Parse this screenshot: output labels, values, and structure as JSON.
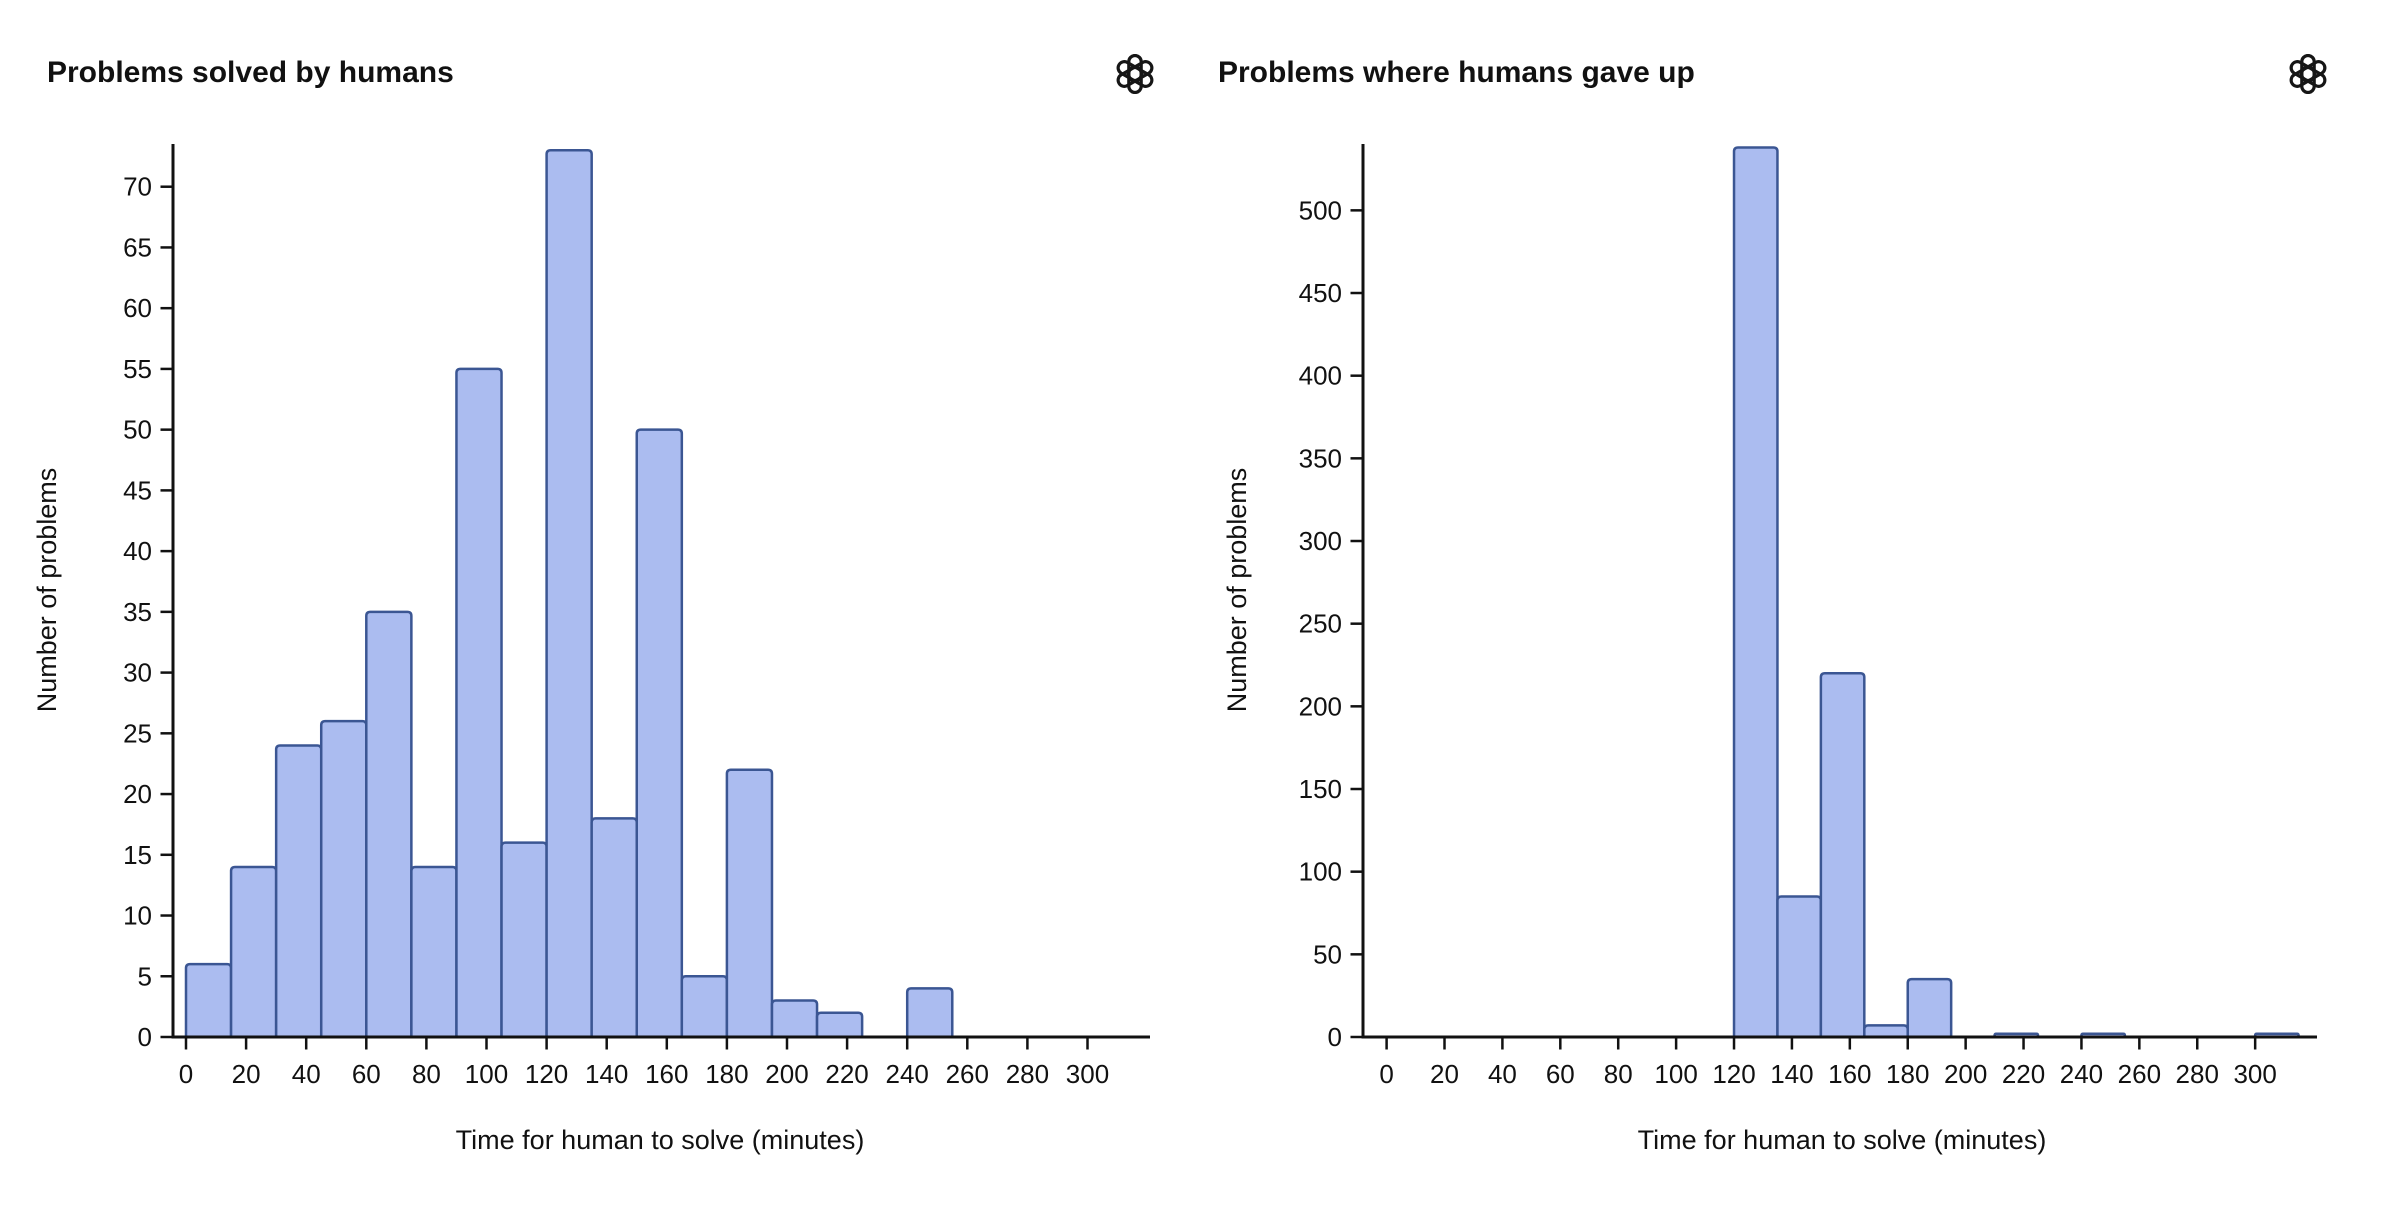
{
  "branding": {
    "logo_icon": "openai-logo"
  },
  "colors": {
    "bar_fill": "#abbcf0",
    "bar_stroke": "#3b5693",
    "axis": "#111111",
    "text": "#111111",
    "background": "#ffffff"
  },
  "chart_data": [
    {
      "type": "histogram",
      "title": "Problems solved by humans",
      "xlabel": "Time for human to solve (minutes)",
      "ylabel": "Number of problems",
      "bin_width_minutes": 15,
      "x_ticks": [
        0,
        20,
        40,
        60,
        80,
        100,
        120,
        140,
        160,
        180,
        200,
        220,
        240,
        260,
        280,
        300
      ],
      "y_ticks": [
        0,
        5,
        10,
        15,
        20,
        25,
        30,
        35,
        40,
        45,
        50,
        55,
        60,
        65,
        70
      ],
      "xlim": [
        -5,
        320
      ],
      "ylim": [
        0,
        73.5
      ],
      "grid": false,
      "legend": null,
      "bins": [
        {
          "start": 0,
          "count": 6
        },
        {
          "start": 15,
          "count": 14
        },
        {
          "start": 30,
          "count": 24
        },
        {
          "start": 45,
          "count": 26
        },
        {
          "start": 60,
          "count": 35
        },
        {
          "start": 75,
          "count": 14
        },
        {
          "start": 90,
          "count": 55
        },
        {
          "start": 105,
          "count": 16
        },
        {
          "start": 120,
          "count": 73
        },
        {
          "start": 135,
          "count": 18
        },
        {
          "start": 150,
          "count": 50
        },
        {
          "start": 165,
          "count": 5
        },
        {
          "start": 180,
          "count": 22
        },
        {
          "start": 195,
          "count": 3
        },
        {
          "start": 210,
          "count": 2
        },
        {
          "start": 225,
          "count": 0
        },
        {
          "start": 240,
          "count": 4
        }
      ]
    },
    {
      "type": "histogram",
      "title": "Problems where humans gave up",
      "xlabel": "Time for human to solve (minutes)",
      "ylabel": "Number of problems",
      "bin_width_minutes": 15,
      "x_ticks": [
        0,
        20,
        40,
        60,
        80,
        100,
        120,
        140,
        160,
        180,
        200,
        220,
        240,
        260,
        280,
        300
      ],
      "y_ticks": [
        0,
        50,
        100,
        150,
        200,
        250,
        300,
        350,
        400,
        450,
        500
      ],
      "xlim": [
        -8,
        321
      ],
      "ylim": [
        0,
        540
      ],
      "grid": false,
      "legend": null,
      "bins": [
        {
          "start": 120,
          "count": 538
        },
        {
          "start": 135,
          "count": 85
        },
        {
          "start": 150,
          "count": 220
        },
        {
          "start": 165,
          "count": 7
        },
        {
          "start": 180,
          "count": 35
        },
        {
          "start": 195,
          "count": 0
        },
        {
          "start": 210,
          "count": 2
        },
        {
          "start": 225,
          "count": 0
        },
        {
          "start": 240,
          "count": 2
        },
        {
          "start": 255,
          "count": 0
        },
        {
          "start": 270,
          "count": 0
        },
        {
          "start": 285,
          "count": 0
        },
        {
          "start": 300,
          "count": 2
        }
      ]
    }
  ]
}
